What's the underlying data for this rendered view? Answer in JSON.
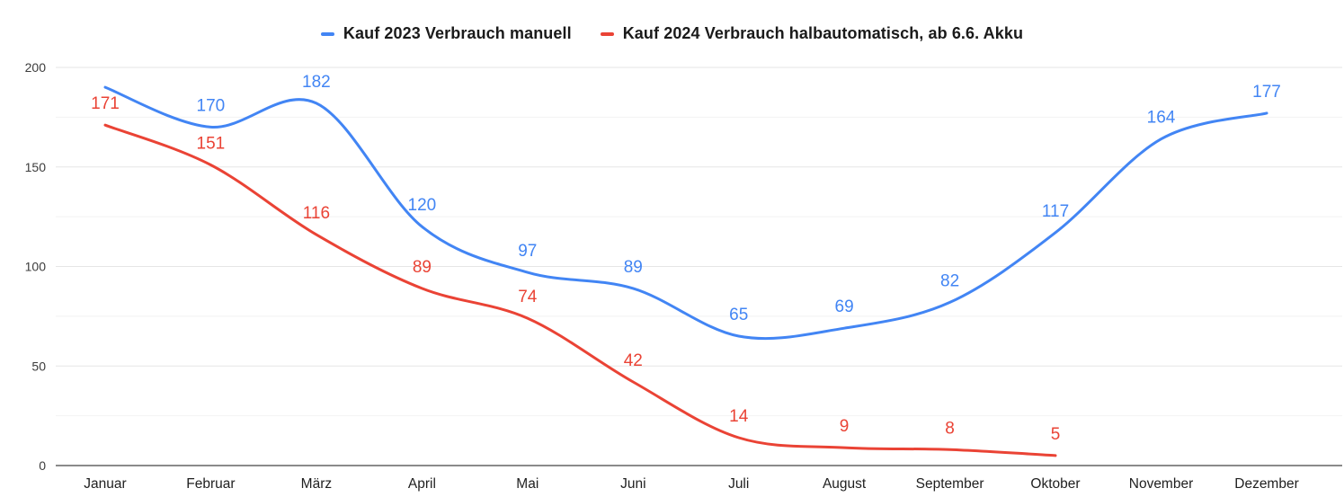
{
  "chart_data": {
    "type": "line",
    "smooth": true,
    "legend_position": "top",
    "grid": true,
    "background": "#ffffff",
    "categories": [
      "Januar",
      "Februar",
      "März",
      "April",
      "Mai",
      "Juni",
      "Juli",
      "August",
      "September",
      "Oktober",
      "November",
      "Dezember"
    ],
    "series": [
      {
        "name": "Kauf 2023 Verbrauch manuell",
        "color": "#4285f4",
        "values": [
          190,
          170,
          182,
          120,
          97,
          89,
          65,
          69,
          82,
          117,
          164,
          177
        ],
        "label_visible": [
          false,
          true,
          true,
          true,
          true,
          true,
          true,
          true,
          true,
          true,
          true,
          true
        ]
      },
      {
        "name": "Kauf 2024 Verbrauch halbautomatisch, ab 6.6. Akku",
        "color": "#ea4335",
        "values": [
          171,
          151,
          116,
          89,
          74,
          42,
          14,
          9,
          8,
          5,
          null,
          null
        ],
        "label_visible": [
          true,
          true,
          true,
          true,
          true,
          true,
          true,
          true,
          true,
          true,
          false,
          false
        ]
      }
    ],
    "y_axis": {
      "ticks": [
        0,
        50,
        100,
        150,
        200
      ],
      "minor_step": 25,
      "range": [
        0,
        200
      ]
    },
    "style": {
      "grid_major_color": "#e6e6e6",
      "grid_minor_color": "#f2f2f2",
      "axis_line_color": "#8a8a8a",
      "y_tick_text_color": "#3c3c3c",
      "x_tick_text_color": "#1f1f1f"
    }
  }
}
